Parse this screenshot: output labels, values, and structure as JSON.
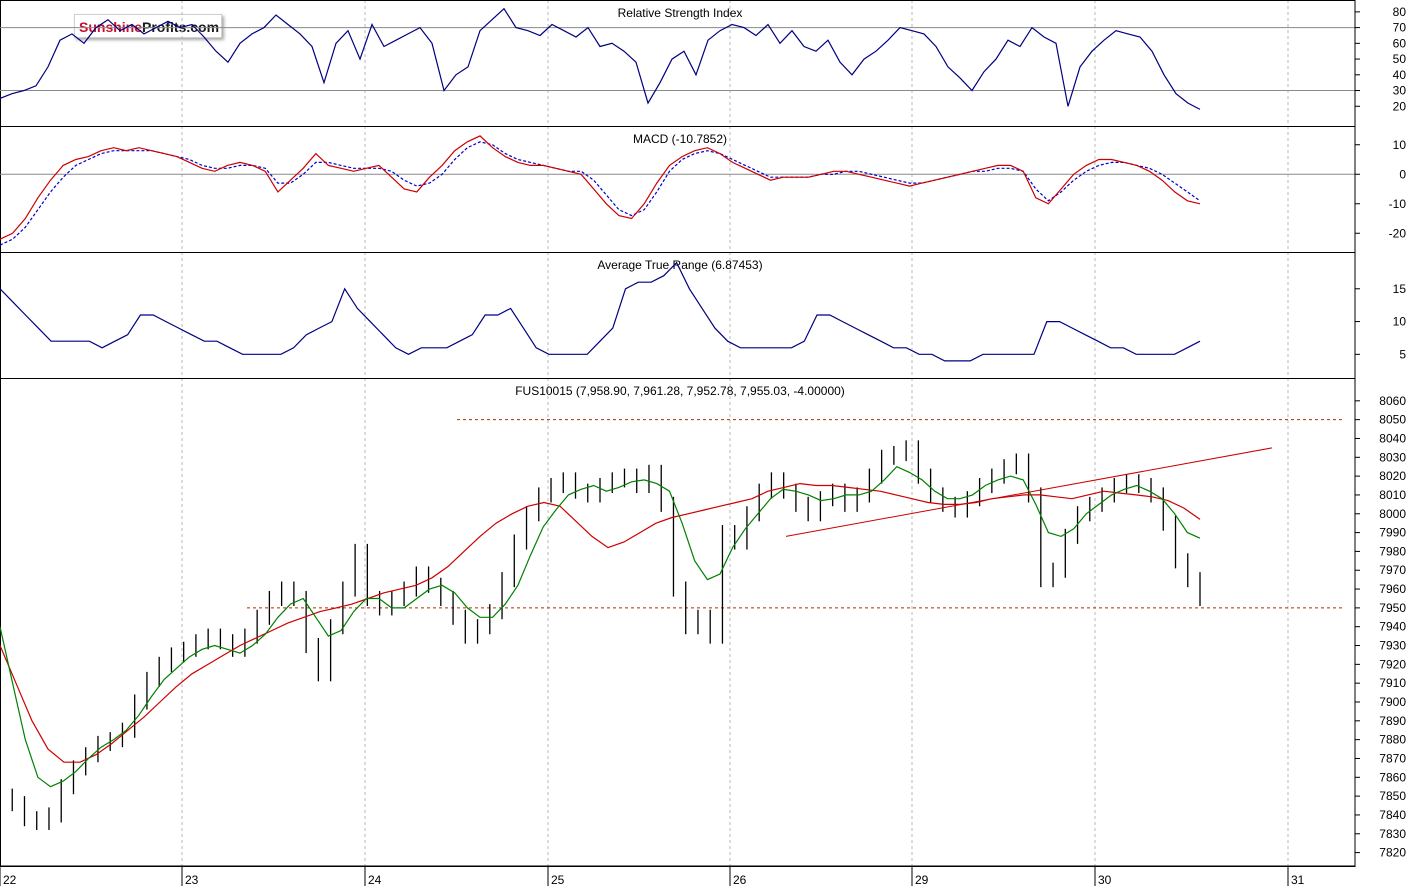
{
  "logo": {
    "part1": "Sunshine",
    "part2": "Profits.com"
  },
  "chart_data": [
    {
      "panel": "rsi",
      "type": "line",
      "title": "Relative Strength Index",
      "ylim": [
        10,
        85
      ],
      "yticks": [
        80,
        70,
        60,
        50,
        40,
        30,
        20
      ],
      "reference_lines": [
        70,
        30
      ],
      "colors": {
        "line": "#000080"
      },
      "values": [
        25,
        28,
        30,
        33,
        45,
        62,
        66,
        60,
        70,
        75,
        68,
        72,
        66,
        70,
        74,
        70,
        72,
        64,
        55,
        48,
        60,
        66,
        70,
        78,
        72,
        66,
        58,
        35,
        60,
        68,
        50,
        72,
        58,
        62,
        66,
        70,
        60,
        30,
        40,
        45,
        68,
        75,
        82,
        70,
        68,
        65,
        72,
        68,
        64,
        70,
        58,
        60,
        55,
        48,
        22,
        35,
        50,
        55,
        40,
        62,
        68,
        72,
        70,
        65,
        72,
        60,
        68,
        58,
        55,
        62,
        48,
        40,
        50,
        55,
        62,
        70,
        68,
        66,
        58,
        45,
        38,
        30,
        42,
        50,
        62,
        58,
        70,
        64,
        60,
        20,
        45,
        55,
        62,
        68,
        66,
        64,
        55,
        40,
        28,
        22,
        18
      ]
    },
    {
      "panel": "macd",
      "type": "line",
      "title": "MACD (-10.7852)",
      "ylim": [
        -25,
        15
      ],
      "yticks": [
        10,
        0,
        -10,
        -20
      ],
      "reference_lines": [
        0
      ],
      "colors": {
        "macd": "#cc0000",
        "signal": "#0000cc"
      },
      "macd": [
        -22,
        -20,
        -15,
        -8,
        -2,
        3,
        5,
        6,
        8,
        9,
        8,
        9,
        8,
        7,
        6,
        4,
        2,
        1,
        3,
        4,
        3,
        1,
        -6,
        -2,
        2,
        7,
        3,
        2,
        1,
        2,
        3,
        -1,
        -5,
        -6,
        -1,
        3,
        8,
        11,
        13,
        9,
        6,
        4,
        3,
        3,
        2,
        1,
        0,
        -5,
        -10,
        -14,
        -15,
        -10,
        -3,
        3,
        6,
        8,
        9,
        7,
        4,
        2,
        0,
        -2,
        -1,
        -1,
        -1,
        0,
        1,
        1,
        0,
        -1,
        -2,
        -3,
        -4,
        -3,
        -2,
        -1,
        0,
        1,
        2,
        3,
        3,
        1,
        -8,
        -10,
        -5,
        0,
        3,
        5,
        5,
        4,
        3,
        1,
        -2,
        -6,
        -9,
        -10
      ],
      "signal": [
        -24,
        -22,
        -18,
        -12,
        -6,
        -1,
        3,
        5,
        7,
        8,
        8,
        8,
        8,
        7,
        6,
        5,
        3,
        2,
        2,
        3,
        3,
        2,
        -3,
        -3,
        0,
        4,
        4,
        3,
        2,
        2,
        2,
        1,
        -2,
        -4,
        -3,
        0,
        5,
        9,
        11,
        10,
        7,
        5,
        4,
        3,
        2,
        1,
        1,
        -2,
        -7,
        -12,
        -14,
        -12,
        -6,
        1,
        5,
        7,
        8,
        7,
        5,
        3,
        1,
        -1,
        -1,
        -1,
        -1,
        0,
        0,
        1,
        1,
        0,
        -1,
        -2,
        -3,
        -3,
        -2,
        -1,
        0,
        1,
        1,
        2,
        2,
        1,
        -5,
        -9,
        -6,
        -2,
        1,
        3,
        4,
        4,
        3,
        2,
        0,
        -3,
        -6,
        -9
      ]
    },
    {
      "panel": "atr",
      "type": "line",
      "title": "Average True Range (6.87453)",
      "ylim": [
        2,
        20
      ],
      "yticks": [
        15,
        10,
        5
      ],
      "colors": {
        "line": "#000080"
      },
      "values": [
        15,
        13,
        11,
        9,
        7,
        7,
        7,
        7,
        6,
        7,
        8,
        11,
        11,
        10,
        9,
        8,
        7,
        7,
        6,
        5,
        5,
        5,
        5,
        6,
        8,
        9,
        10,
        15,
        12,
        10,
        8,
        6,
        5,
        6,
        6,
        6,
        7,
        8,
        11,
        11,
        12,
        9,
        6,
        5,
        5,
        5,
        5,
        7,
        9,
        15,
        16,
        16,
        17,
        19,
        15,
        12,
        9,
        7,
        6,
        6,
        6,
        6,
        6,
        7,
        11,
        11,
        10,
        9,
        8,
        7,
        6,
        6,
        5,
        5,
        4,
        4,
        4,
        5,
        5,
        5,
        5,
        5,
        10,
        10,
        9,
        8,
        7,
        6,
        6,
        5,
        5,
        5,
        5,
        6,
        7
      ]
    },
    {
      "panel": "price",
      "type": "line",
      "title": "FUS10015 (7,958.90, 7,961.28, 7,952.78, 7,955.03, -4.00000)",
      "ylim": [
        7815,
        8070
      ],
      "yticks": [
        8060,
        8050,
        8040,
        8030,
        8020,
        8010,
        8000,
        7990,
        7980,
        7970,
        7960,
        7950,
        7940,
        7930,
        7920,
        7910,
        7900,
        7890,
        7880,
        7870,
        7860,
        7850,
        7840,
        7830,
        7820
      ],
      "reference_lines": [
        8050,
        7950
      ],
      "colors": {
        "price": "#000000",
        "ema_fast": "#008000",
        "ema_slow": "#cc0000",
        "trend": "#cc0000",
        "resistance": "#b03000"
      },
      "close": [
        7850,
        7846,
        7838,
        7836,
        7840,
        7855,
        7865,
        7872,
        7878,
        7880,
        7885,
        7900,
        7912,
        7920,
        7925,
        7928,
        7932,
        7935,
        7932,
        7928,
        7935,
        7945,
        7955,
        7960,
        7955,
        7930,
        7915,
        7940,
        7960,
        7980,
        7955,
        7950,
        7955,
        7960,
        7968,
        7962,
        7955,
        7945,
        7935,
        7940,
        7948,
        7965,
        7985,
        8000,
        8010,
        8015,
        8018,
        8012,
        8010,
        8015,
        8018,
        8020,
        8015,
        8022,
        8005,
        7960,
        7940,
        7945,
        7935,
        7990,
        7985,
        8000,
        8012,
        8018,
        8012,
        8005,
        8000,
        8008,
        8012,
        8005,
        8010,
        8020,
        8030,
        8032,
        8035,
        8020,
        8010,
        8005,
        8002,
        8008,
        8015,
        8020,
        8025,
        8028,
        8010,
        7965,
        7970,
        7988,
        8000,
        8005,
        8010,
        8015,
        8017,
        8015,
        8010,
        7995,
        7975,
        7965,
        7955
      ],
      "ema_fast": [
        7940,
        7910,
        7880,
        7860,
        7855,
        7858,
        7863,
        7870,
        7876,
        7880,
        7885,
        7893,
        7903,
        7912,
        7918,
        7924,
        7928,
        7930,
        7928,
        7926,
        7930,
        7936,
        7945,
        7952,
        7955,
        7945,
        7935,
        7938,
        7948,
        7955,
        7955,
        7950,
        7950,
        7955,
        7960,
        7962,
        7958,
        7950,
        7945,
        7945,
        7952,
        7962,
        7978,
        7993,
        8002,
        8010,
        8013,
        8015,
        8012,
        8014,
        8017,
        8018,
        8016,
        8012,
        7995,
        7975,
        7965,
        7968,
        7982,
        7992,
        8000,
        8008,
        8013,
        8012,
        8010,
        8007,
        8008,
        8010,
        8010,
        8012,
        8018,
        8025,
        8022,
        8018,
        8012,
        8008,
        8008,
        8010,
        8015,
        8018,
        8020,
        8018,
        8005,
        7990,
        7988,
        7992,
        8000,
        8005,
        8010,
        8013,
        8015,
        8012,
        8008,
        8000,
        7990,
        7987
      ],
      "ema_slow": [
        7930,
        7910,
        7890,
        7875,
        7868,
        7868,
        7872,
        7878,
        7885,
        7892,
        7900,
        7908,
        7915,
        7920,
        7925,
        7930,
        7934,
        7938,
        7942,
        7945,
        7948,
        7950,
        7952,
        7955,
        7958,
        7960,
        7962,
        7966,
        7972,
        7980,
        7988,
        7995,
        8000,
        8004,
        8006,
        8004,
        7996,
        7988,
        7982,
        7985,
        7990,
        7995,
        7998,
        8000,
        8002,
        8004,
        8006,
        8008,
        8012,
        8014,
        8016,
        8015,
        8015,
        8014,
        8013,
        8012,
        8010,
        8008,
        8006,
        8005,
        8005,
        8006,
        8008,
        8009,
        8010,
        8010,
        8009,
        8008,
        8010,
        8012,
        8011,
        8010,
        8009,
        8007,
        8003,
        7997
      ]
    }
  ],
  "dates": [
    "22",
    "23",
    "24",
    "25",
    "26",
    "29",
    "30",
    "31"
  ]
}
